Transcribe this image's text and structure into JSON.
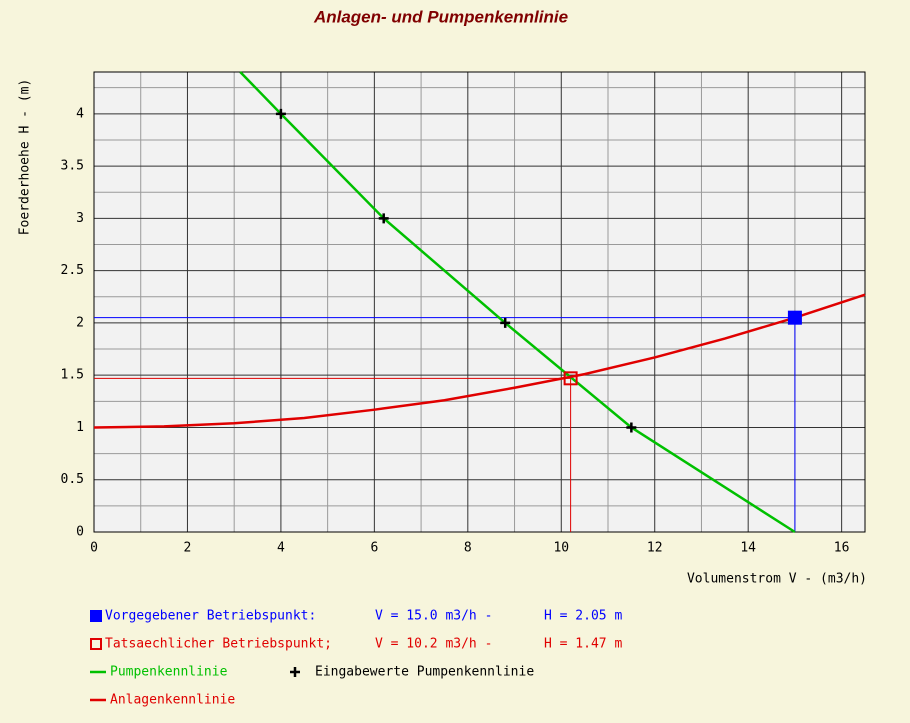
{
  "chart_data": {
    "type": "line",
    "title": "Anlagen- und Pumpenkennlinie",
    "x_label": "Volumenstrom V - (m3/h)",
    "y_label": "Foerderhoehe H - (m)",
    "xlim": [
      0,
      16.5
    ],
    "ylim": [
      0,
      4.4
    ],
    "xticks": [
      0,
      2,
      4,
      6,
      8,
      10,
      12,
      14,
      16
    ],
    "yticks": [
      0,
      0.5,
      1,
      1.5,
      2,
      2.5,
      3,
      3.5,
      4
    ],
    "xgrid": [
      1,
      3,
      5,
      7,
      9,
      11,
      13,
      15
    ],
    "ygrid": [
      0.25,
      0.75,
      1.25,
      1.75,
      2.25,
      2.75,
      3.25,
      3.75,
      4.25
    ],
    "grid": true,
    "series": [
      {
        "name": "Pumpenkennlinie",
        "color": "#00c000",
        "marker": "none",
        "x": [
          3.13,
          4,
          6.2,
          8.8,
          11.5,
          15
        ],
        "values": [
          4.4,
          4,
          3,
          2,
          1,
          0
        ]
      },
      {
        "name": "Eingabewerte Pumpenkennlinie",
        "color": "#000000",
        "marker": "plus",
        "x": [
          4,
          6.2,
          8.8,
          11.5
        ],
        "values": [
          4,
          3,
          2,
          1
        ]
      },
      {
        "name": "Anlagenkennlinie",
        "color": "#e00000",
        "marker": "none",
        "x": [
          0,
          1.5,
          3,
          4.5,
          6,
          7.5,
          9,
          10.5,
          12,
          13.5,
          15,
          16.5
        ],
        "values": [
          1,
          1.01,
          1.04,
          1.09,
          1.17,
          1.26,
          1.38,
          1.51,
          1.67,
          1.85,
          2.05,
          2.27
        ]
      }
    ],
    "points": [
      {
        "label": "Vorgegebener Betriebspunkt:",
        "v_text": "V = 15.0 m3/h -",
        "h_text": "H = 2.05 m",
        "color": "#0000ff",
        "marker": "filled-square",
        "x": 15,
        "y": 2.05
      },
      {
        "label": "Tatsaechlicher Betriebspunkt;",
        "v_text": "V = 10.2 m3/h -",
        "h_text": "H = 1.47 m",
        "color": "#e00000",
        "marker": "hollow-square",
        "x": 10.2,
        "y": 1.47
      }
    ]
  }
}
